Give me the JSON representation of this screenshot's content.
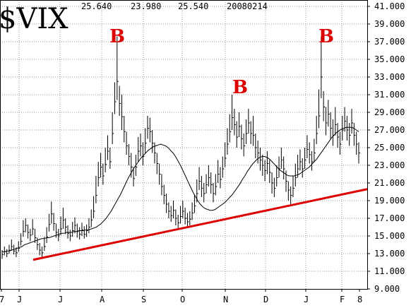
{
  "chart_data": {
    "type": "bar",
    "title": "$VIX",
    "header_values": [
      "25.640",
      "23.980",
      "25.540",
      "20080214"
    ],
    "ylim": [
      9,
      41
    ],
    "y_ticks": [
      "41.000",
      "39.000",
      "37.000",
      "35.000",
      "33.000",
      "31.000",
      "29.000",
      "27.000",
      "25.000",
      "23.000",
      "21.000",
      "19.000",
      "17.000",
      "15.000",
      "13.000",
      "11.000",
      "9.000"
    ],
    "x_ticks": [
      "7",
      "J",
      "J",
      "A",
      "S",
      "O",
      "N",
      "D",
      "J",
      "F",
      "8"
    ],
    "grid": true,
    "series": [
      {
        "values": [
          [
            12.9,
            13.4,
            12.4
          ],
          [
            13.2,
            13.8,
            12.8
          ],
          [
            13.0,
            13.5,
            12.6
          ],
          [
            13.4,
            14.0,
            13.0
          ],
          [
            13.8,
            14.6,
            13.4
          ],
          [
            13.3,
            14.0,
            12.9
          ],
          [
            13.1,
            13.7,
            12.6
          ],
          [
            13.6,
            14.4,
            13.2
          ],
          [
            14.4,
            15.3,
            13.9
          ],
          [
            15.5,
            16.8,
            14.9
          ],
          [
            16.2,
            17.0,
            15.4
          ],
          [
            15.4,
            16.3,
            14.7
          ],
          [
            15.1,
            15.8,
            14.4
          ],
          [
            15.8,
            16.9,
            15.1
          ],
          [
            14.8,
            15.8,
            14.2
          ],
          [
            14.0,
            14.8,
            13.4
          ],
          [
            13.4,
            14.2,
            12.8
          ],
          [
            13.1,
            13.8,
            12.5
          ],
          [
            13.8,
            14.9,
            13.3
          ],
          [
            14.9,
            16.0,
            14.2
          ],
          [
            16.3,
            17.5,
            15.5
          ],
          [
            17.5,
            18.9,
            16.4
          ],
          [
            16.4,
            17.6,
            15.6
          ],
          [
            15.4,
            16.4,
            14.8
          ],
          [
            15.0,
            15.8,
            14.4
          ],
          [
            15.8,
            17.2,
            15.1
          ],
          [
            16.8,
            18.2,
            15.8
          ],
          [
            16.0,
            17.0,
            15.2
          ],
          [
            15.3,
            16.2,
            14.7
          ],
          [
            15.0,
            15.7,
            14.4
          ],
          [
            15.6,
            16.6,
            14.9
          ],
          [
            16.2,
            17.1,
            15.3
          ],
          [
            15.5,
            16.4,
            14.8
          ],
          [
            15.2,
            16.0,
            14.6
          ],
          [
            15.7,
            16.5,
            15.0
          ],
          [
            15.2,
            16.1,
            14.7
          ],
          [
            15.6,
            16.3,
            14.9
          ],
          [
            16.0,
            17.0,
            15.3
          ],
          [
            16.8,
            18.0,
            16.0
          ],
          [
            17.8,
            19.5,
            17.0
          ],
          [
            19.6,
            21.8,
            18.7
          ],
          [
            21.6,
            23.4,
            20.6
          ],
          [
            22.8,
            24.4,
            21.6
          ],
          [
            21.8,
            23.2,
            20.8
          ],
          [
            23.1,
            25.0,
            22.2
          ],
          [
            24.6,
            26.4,
            23.6
          ],
          [
            23.4,
            25.0,
            22.6
          ],
          [
            26.6,
            29.0,
            25.4
          ],
          [
            30.2,
            32.4,
            28.8
          ],
          [
            32.5,
            37.6,
            30.4
          ],
          [
            30.0,
            32.0,
            28.6
          ],
          [
            28.5,
            31.0,
            27.0
          ],
          [
            26.8,
            28.6,
            25.6
          ],
          [
            25.2,
            26.8,
            24.2
          ],
          [
            24.0,
            25.4,
            23.0
          ],
          [
            22.8,
            24.4,
            21.6
          ],
          [
            21.5,
            22.8,
            20.6
          ],
          [
            22.8,
            24.2,
            21.8
          ],
          [
            24.6,
            26.2,
            23.4
          ],
          [
            25.2,
            26.6,
            24.0
          ],
          [
            24.0,
            25.6,
            23.0
          ],
          [
            25.5,
            27.2,
            24.4
          ],
          [
            27.2,
            28.6,
            26.0
          ],
          [
            26.8,
            28.4,
            25.6
          ],
          [
            25.5,
            27.0,
            24.4
          ],
          [
            24.4,
            25.6,
            23.2
          ],
          [
            23.2,
            24.4,
            22.0
          ],
          [
            22.0,
            23.2,
            20.8
          ],
          [
            20.6,
            22.0,
            19.6
          ],
          [
            19.6,
            20.8,
            18.6
          ],
          [
            18.6,
            19.8,
            17.6
          ],
          [
            17.8,
            18.8,
            17.0
          ],
          [
            17.3,
            18.4,
            16.6
          ],
          [
            17.9,
            19.0,
            17.0
          ],
          [
            17.0,
            18.0,
            16.2
          ],
          [
            16.5,
            17.4,
            15.9
          ],
          [
            17.2,
            18.4,
            16.4
          ],
          [
            17.8,
            19.0,
            17.0
          ],
          [
            17.0,
            18.2,
            16.3
          ],
          [
            16.6,
            17.6,
            16.0
          ],
          [
            16.9,
            17.8,
            16.2
          ],
          [
            17.6,
            18.8,
            16.8
          ],
          [
            18.4,
            19.6,
            17.6
          ],
          [
            19.8,
            21.4,
            18.8
          ],
          [
            21.2,
            22.8,
            20.2
          ],
          [
            20.4,
            21.8,
            19.4
          ],
          [
            19.8,
            21.0,
            18.8
          ],
          [
            20.8,
            22.0,
            19.8
          ],
          [
            21.6,
            23.0,
            20.6
          ],
          [
            20.8,
            22.2,
            19.8
          ],
          [
            19.8,
            21.0,
            18.8
          ],
          [
            20.6,
            22.0,
            19.6
          ],
          [
            22.0,
            23.6,
            21.0
          ],
          [
            21.4,
            22.8,
            20.4
          ],
          [
            22.6,
            24.0,
            21.6
          ],
          [
            23.8,
            25.6,
            22.8
          ],
          [
            25.4,
            27.2,
            24.2
          ],
          [
            26.8,
            28.8,
            25.6
          ],
          [
            28.4,
            31.0,
            27.0
          ],
          [
            27.6,
            29.4,
            26.4
          ],
          [
            26.2,
            28.0,
            25.0
          ],
          [
            27.4,
            29.0,
            26.2
          ],
          [
            26.0,
            27.6,
            24.8
          ],
          [
            25.2,
            26.6,
            24.0
          ],
          [
            26.6,
            28.2,
            25.4
          ],
          [
            27.8,
            29.4,
            26.6
          ],
          [
            26.6,
            28.0,
            25.4
          ],
          [
            26.4,
            28.6,
            25.2
          ],
          [
            25.0,
            26.6,
            23.8
          ],
          [
            24.4,
            25.8,
            23.2
          ],
          [
            23.6,
            25.0,
            22.4
          ],
          [
            23.0,
            24.2,
            21.8
          ],
          [
            22.4,
            23.6,
            21.2
          ],
          [
            23.2,
            24.6,
            22.0
          ],
          [
            22.2,
            23.6,
            21.0
          ],
          [
            21.0,
            22.2,
            19.8
          ],
          [
            20.4,
            21.6,
            19.4
          ],
          [
            21.6,
            23.0,
            20.6
          ],
          [
            22.6,
            24.0,
            21.6
          ],
          [
            23.6,
            25.0,
            22.6
          ],
          [
            22.6,
            24.0,
            21.4
          ],
          [
            21.2,
            22.4,
            20.0
          ],
          [
            20.2,
            21.2,
            19.0
          ],
          [
            19.6,
            20.6,
            18.6
          ],
          [
            20.4,
            21.8,
            19.4
          ],
          [
            21.6,
            23.2,
            20.6
          ],
          [
            22.6,
            24.2,
            21.6
          ],
          [
            23.4,
            24.8,
            22.4
          ],
          [
            22.6,
            23.8,
            21.6
          ],
          [
            23.6,
            25.0,
            22.6
          ],
          [
            24.8,
            26.4,
            23.8
          ],
          [
            24.2,
            25.6,
            23.2
          ],
          [
            23.4,
            24.6,
            22.4
          ],
          [
            24.4,
            26.0,
            23.4
          ],
          [
            26.6,
            28.6,
            25.4
          ],
          [
            28.6,
            31.6,
            27.2
          ],
          [
            33.0,
            37.6,
            30.6
          ],
          [
            29.6,
            31.4,
            28.0
          ],
          [
            27.8,
            29.6,
            26.4
          ],
          [
            28.8,
            30.4,
            27.4
          ],
          [
            27.2,
            29.0,
            26.0
          ],
          [
            26.4,
            28.2,
            25.2
          ],
          [
            27.6,
            29.6,
            26.4
          ],
          [
            26.2,
            27.8,
            25.0
          ],
          [
            25.4,
            26.8,
            24.2
          ],
          [
            27.0,
            28.6,
            25.8
          ],
          [
            28.0,
            29.6,
            26.8
          ],
          [
            27.0,
            28.6,
            25.8
          ],
          [
            26.4,
            27.8,
            25.2
          ],
          [
            27.8,
            29.4,
            26.6
          ],
          [
            26.4,
            27.8,
            25.2
          ],
          [
            25.4,
            26.8,
            24.2
          ],
          [
            24.4,
            25.6,
            23.2
          ]
        ]
      }
    ],
    "moving_average": [
      13.2,
      13.2,
      13.3,
      13.3,
      13.4,
      13.5,
      13.6,
      13.7,
      13.8,
      14.0,
      14.1,
      14.2,
      14.3,
      14.4,
      14.5,
      14.6,
      14.7,
      14.7,
      14.8,
      14.8,
      14.9,
      15.0,
      15.1,
      15.2,
      15.3,
      15.3,
      15.4,
      15.4,
      15.4,
      15.5,
      15.5,
      15.6,
      15.6,
      15.6,
      15.7,
      15.7,
      15.8,
      15.9,
      16.0,
      16.2,
      16.4,
      16.7,
      17.0,
      17.4,
      17.8,
      18.3,
      18.8,
      19.3,
      19.8,
      20.4,
      21.0,
      21.6,
      22.1,
      22.6,
      23.0,
      23.4,
      23.8,
      24.1,
      24.4,
      24.7,
      24.9,
      25.1,
      25.2,
      25.3,
      25.4,
      25.3,
      25.2,
      25.0,
      24.7,
      24.4,
      24.0,
      23.5,
      23.0,
      22.4,
      21.8,
      21.2,
      20.6,
      20.0,
      19.5,
      19.0,
      18.6,
      18.3,
      18.1,
      18.0,
      17.9,
      17.9,
      18.0,
      18.2,
      18.4,
      18.6,
      18.8,
      19.1,
      19.4,
      19.7,
      20.1,
      20.5,
      20.9,
      21.4,
      21.8,
      22.3,
      22.7,
      23.1,
      23.4,
      23.7,
      23.9,
      24.0,
      24.0,
      23.9,
      23.7,
      23.4,
      23.1,
      22.8,
      22.5,
      22.3,
      22.1,
      21.9,
      21.8,
      21.8,
      21.8,
      21.9,
      22.0,
      22.2,
      22.4,
      22.6,
      22.8,
      23.1,
      23.4,
      23.7,
      24.1,
      24.5,
      24.9,
      25.3,
      25.7,
      26.1,
      26.4,
      26.7,
      26.9,
      27.1,
      27.2,
      27.3,
      27.3,
      27.3,
      27.2,
      27.0,
      26.8
    ],
    "trendline": [
      [
        0,
        12.3
      ],
      [
        150,
        20.3
      ]
    ],
    "annotations": [
      "B",
      "B",
      "B"
    ]
  }
}
